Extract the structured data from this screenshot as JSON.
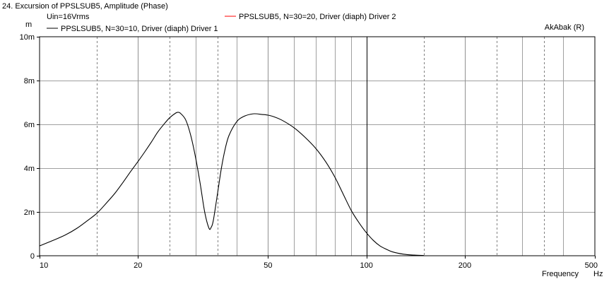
{
  "chart_data": {
    "type": "line",
    "title": "24. Excursion of PPSLSUB5, Amplitude (Phase)",
    "subtitle": "Uin=16Vrms",
    "brand": "AkAbak (R)",
    "xlabel": "Frequency",
    "xunit": "Hz",
    "yunit": "m",
    "x_scale": "log",
    "xlim": [
      10,
      500
    ],
    "ylim": [
      0,
      10
    ],
    "grid": true,
    "x_ticks": [
      {
        "value": 10,
        "label": "10"
      },
      {
        "value": 20,
        "label": "20"
      },
      {
        "value": 50,
        "label": "50"
      },
      {
        "value": 100,
        "label": "100"
      },
      {
        "value": 200,
        "label": "200"
      },
      {
        "value": 500,
        "label": "500"
      }
    ],
    "y_ticks": [
      {
        "value": 0,
        "label": "0"
      },
      {
        "value": 2,
        "label": "2m"
      },
      {
        "value": 4,
        "label": "4m"
      },
      {
        "value": 6,
        "label": "6m"
      },
      {
        "value": 8,
        "label": "8m"
      },
      {
        "value": 10,
        "label": "10m"
      }
    ],
    "x_minor_dashed": [
      15,
      25,
      35,
      150,
      250,
      350
    ],
    "x_minor_solid": [
      30,
      40,
      60,
      70,
      80,
      90,
      300,
      400
    ],
    "x_major_solid": [
      20,
      50,
      200
    ],
    "x_highlight": [
      100
    ],
    "series": [
      {
        "name": "PPSLSUB5, N=30=10, Driver (diaph) Driver 1",
        "color": "#000000",
        "x": [
          10,
          11,
          12,
          13,
          14,
          15,
          16,
          17,
          18,
          19,
          20,
          21,
          22,
          23,
          24,
          25,
          26,
          26.5,
          27,
          28,
          29,
          30,
          31,
          32,
          33,
          33.5,
          34,
          35,
          36,
          37,
          38,
          40,
          42,
          45,
          48,
          50,
          52,
          55,
          60,
          65,
          70,
          75,
          80,
          85,
          90,
          95,
          100,
          105,
          110,
          115,
          120,
          130,
          140,
          150
        ],
        "y": [
          0.45,
          0.7,
          0.95,
          1.25,
          1.6,
          1.95,
          2.4,
          2.85,
          3.35,
          3.85,
          4.3,
          4.75,
          5.2,
          5.65,
          6.0,
          6.3,
          6.5,
          6.55,
          6.5,
          6.2,
          5.5,
          4.5,
          3.3,
          2.0,
          1.25,
          1.3,
          1.6,
          2.8,
          4.0,
          4.9,
          5.5,
          6.1,
          6.35,
          6.48,
          6.45,
          6.42,
          6.35,
          6.2,
          5.85,
          5.4,
          4.9,
          4.3,
          3.6,
          2.8,
          2.05,
          1.5,
          1.05,
          0.7,
          0.45,
          0.3,
          0.18,
          0.07,
          0.03,
          0.01
        ]
      },
      {
        "name": "PPSLSUB5, N=30=20, Driver (diaph) Driver 2",
        "color": "#ff0000",
        "x": [],
        "y": []
      }
    ]
  }
}
